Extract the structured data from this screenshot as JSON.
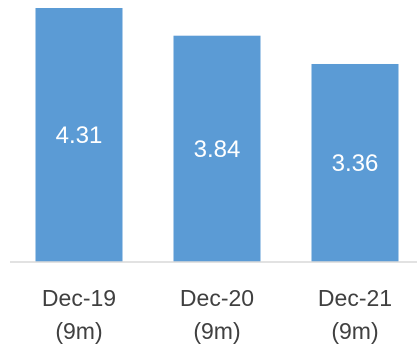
{
  "chart_data": {
    "type": "bar",
    "categories": [
      [
        "Dec-19",
        "(9m)"
      ],
      [
        "Dec-20",
        "(9m)"
      ],
      [
        "Dec-21",
        "(9m)"
      ]
    ],
    "values": [
      4.31,
      3.84,
      3.36
    ],
    "data_labels": [
      "4.31",
      "3.84",
      "3.36"
    ],
    "ylim": [
      0,
      4.31
    ],
    "grid": false,
    "legend": "none",
    "colors": {
      "bar": "#5b9bd5",
      "axis": "#d9d9d9",
      "data_label": "#ffffff",
      "tick_label": "#404040"
    }
  }
}
